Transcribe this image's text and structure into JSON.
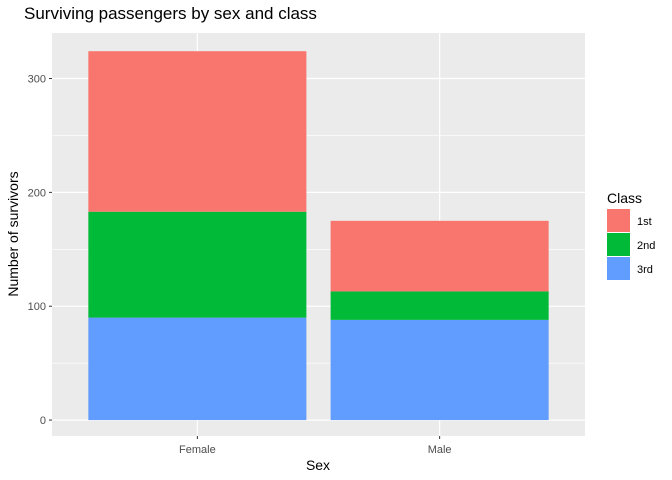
{
  "chart_data": {
    "type": "bar",
    "stacked": true,
    "title": "Surviving passengers by sex and class",
    "xlabel": "Sex",
    "ylabel": "Number of survivors",
    "categories": [
      "Female",
      "Male"
    ],
    "series": [
      {
        "name": "1st",
        "color": "#F8766D",
        "values": [
          141,
          62
        ]
      },
      {
        "name": "2nd",
        "color": "#00BA38",
        "values": [
          93,
          25
        ]
      },
      {
        "name": "3rd",
        "color": "#619CFF",
        "values": [
          90,
          88
        ]
      }
    ],
    "stack_order_bottom_to_top": [
      "3rd",
      "2nd",
      "1st"
    ],
    "y_ticks": [
      0,
      100,
      200,
      300
    ],
    "ylim": [
      -14,
      340
    ],
    "grid": true,
    "background": "#EBEBEB",
    "legend": {
      "title": "Class",
      "placement": "right"
    }
  }
}
